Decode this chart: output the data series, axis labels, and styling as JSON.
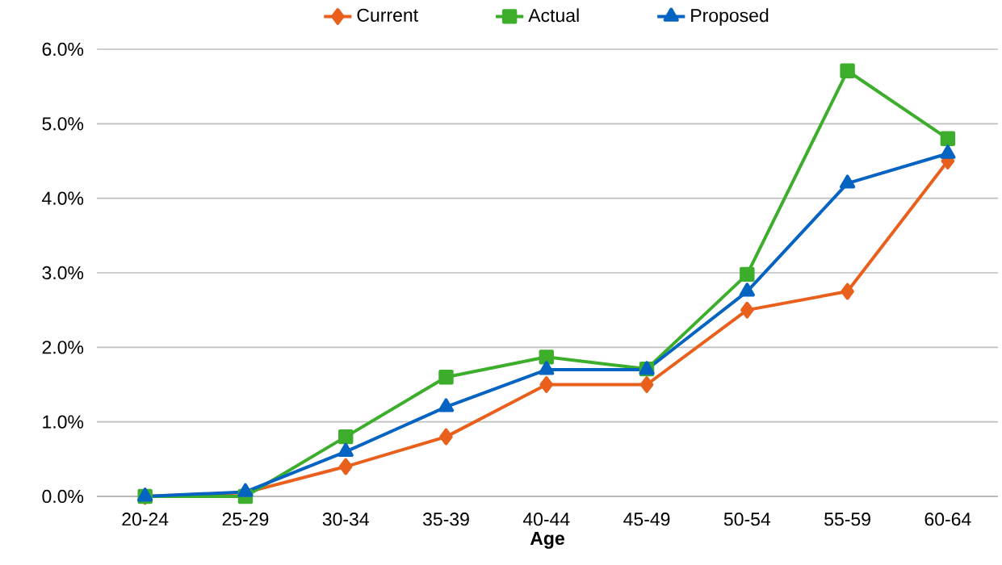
{
  "chart_data": {
    "type": "line",
    "xlabel": "Age",
    "categories": [
      "20-24",
      "25-29",
      "30-34",
      "35-39",
      "40-44",
      "45-49",
      "50-54",
      "55-59",
      "60-64"
    ],
    "series": [
      {
        "name": "Current",
        "color": "#e8601c",
        "marker": "diamond",
        "values": [
          0,
          0.05,
          0.4,
          0.8,
          1.5,
          1.5,
          2.5,
          2.75,
          4.5
        ]
      },
      {
        "name": "Actual",
        "color": "#3dae2b",
        "marker": "square",
        "values": [
          0,
          0,
          0.8,
          1.6,
          1.87,
          1.71,
          2.98,
          5.71,
          4.8
        ]
      },
      {
        "name": "Proposed",
        "color": "#0563c1",
        "marker": "triangle",
        "values": [
          0,
          0.06,
          0.6,
          1.2,
          1.7,
          1.7,
          2.75,
          4.2,
          4.6
        ]
      }
    ],
    "ylim": [
      0,
      6
    ],
    "yticks": [
      {
        "value": 0,
        "label": "0.0%"
      },
      {
        "value": 1,
        "label": "1.0%"
      },
      {
        "value": 2,
        "label": "2.0%"
      },
      {
        "value": 3,
        "label": "3.0%"
      },
      {
        "value": 4,
        "label": "4.0%"
      },
      {
        "value": 5,
        "label": "5.0%"
      },
      {
        "value": 6,
        "label": "6.0%"
      }
    ],
    "grid": "y",
    "legend": "top",
    "line_style": "solid"
  }
}
